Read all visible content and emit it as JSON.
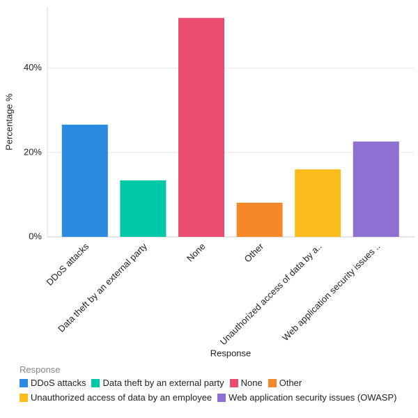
{
  "chart_data": {
    "type": "bar",
    "categories": [
      "DDoS attacks",
      "Data theft by an external party",
      "None",
      "Other",
      "Unauthorized access of data by a..",
      "Web application security issues .."
    ],
    "values": [
      26.6,
      13.4,
      51.9,
      8.1,
      16.0,
      22.6
    ],
    "colors": [
      "#2a8be0",
      "#00c9a7",
      "#e84d6f",
      "#f5892a",
      "#fbbc1e",
      "#8f6fd1"
    ],
    "x_label": "Response",
    "y_label": "Percentage %",
    "ylim": [
      0,
      54.5
    ],
    "yticks": [
      {
        "value": 0,
        "label": "0%"
      },
      {
        "value": 20,
        "label": "20%"
      },
      {
        "value": 40,
        "label": "40%"
      }
    ],
    "grid": true,
    "legend": {
      "title": "Response",
      "items": [
        "DDoS attacks",
        "Data theft by an external party",
        "None",
        "Other",
        "Unauthorized access of data by an employee",
        "Web application security issues (OWASP)"
      ]
    }
  }
}
